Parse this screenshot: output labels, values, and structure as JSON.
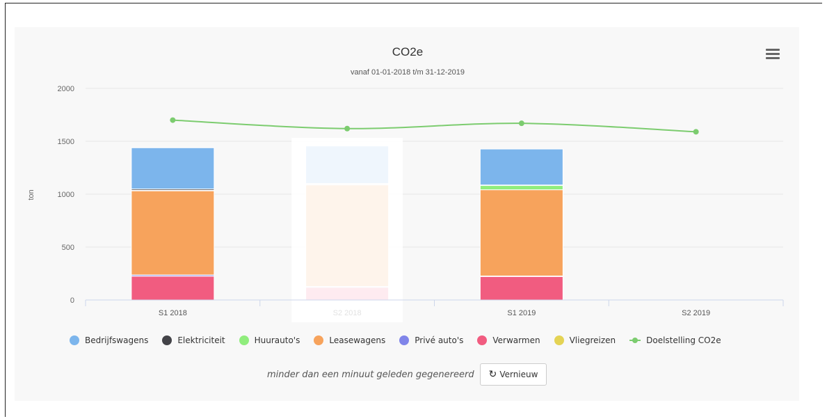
{
  "chart_data": {
    "type": "bar",
    "stacked": true,
    "title": "CO2e",
    "subtitle": "vanaf 01-01-2018 t/m 31-12-2019",
    "ylabel": "ton",
    "ylim": [
      0,
      2000
    ],
    "yticks": [
      0,
      500,
      1000,
      1500,
      2000
    ],
    "categories": [
      "S1 2018",
      "S2 2018",
      "S1 2019",
      "S2 2019"
    ],
    "series": [
      {
        "name": "Verwarmen",
        "color": "#f15c80",
        "values": [
          225,
          120,
          222,
          0
        ]
      },
      {
        "name": "Privé auto's",
        "color": "#8085e9",
        "values": [
          12,
          8,
          5,
          0
        ]
      },
      {
        "name": "Leasewagens",
        "color": "#f7a35c",
        "values": [
          795,
          960,
          815,
          0
        ]
      },
      {
        "name": "Huurauto's",
        "color": "#90ed7d",
        "values": [
          5,
          5,
          40,
          0
        ]
      },
      {
        "name": "Elektriciteit",
        "color": "#434348",
        "values": [
          12,
          8,
          5,
          0
        ]
      },
      {
        "name": "Bedrijfswagens",
        "color": "#7cb5ec",
        "values": [
          390,
          355,
          340,
          0
        ]
      },
      {
        "name": "Vliegreizen",
        "color": "#e4d354",
        "values": [
          0,
          0,
          0,
          0
        ]
      }
    ],
    "target_line": {
      "name": "Doelstelling CO2e",
      "color": "#7ccc6f",
      "values": [
        1700,
        1620,
        1670,
        1590
      ]
    },
    "grid": true,
    "legend_position": "bottom"
  },
  "legend": [
    {
      "label": "Bedrijfswagens",
      "color": "#7cb5ec",
      "kind": "dot"
    },
    {
      "label": "Elektriciteit",
      "color": "#434348",
      "kind": "dot"
    },
    {
      "label": "Huurauto's",
      "color": "#90ed7d",
      "kind": "dot"
    },
    {
      "label": "Leasewagens",
      "color": "#f7a35c",
      "kind": "dot"
    },
    {
      "label": "Privé auto's",
      "color": "#8085e9",
      "kind": "dot"
    },
    {
      "label": "Verwarmen",
      "color": "#f15c80",
      "kind": "dot"
    },
    {
      "label": "Vliegreizen",
      "color": "#e4d354",
      "kind": "dot"
    },
    {
      "label": "Doelstelling CO2e",
      "color": "#7ccc6f",
      "kind": "line"
    }
  ],
  "footer": {
    "note": "minder dan een minuut geleden gegenereerd",
    "refresh_icon": "↻",
    "refresh_label": "Vernieuw"
  },
  "highlight": {
    "category_index": 1
  }
}
